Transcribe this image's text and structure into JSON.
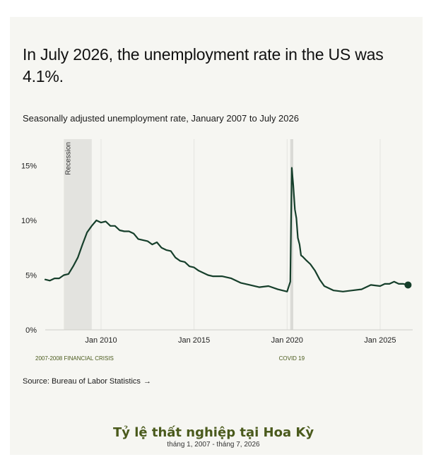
{
  "headline": "In July 2026, the unemployment rate in the US was 4.1%.",
  "subtitle": "Seasonally adjusted unemployment rate, January 2007 to July 2026",
  "source": {
    "label": "Source: Bureau of Labor Statistics",
    "arrow": "→"
  },
  "footer": {
    "title": "Tỷ lệ thất nghiệp tại Hoa Kỳ",
    "subtitle": "tháng 1, 2007 - tháng 7, 2026"
  },
  "colors": {
    "line": "#163f2b",
    "recession": "#e3e3df",
    "covid": "#dadad6",
    "annotation": "#4a5a1c",
    "background": "#f6f6f2"
  },
  "chart_data": {
    "type": "line",
    "xlim": [
      2007.0,
      2026.75
    ],
    "ylim": [
      0,
      16
    ],
    "y_ticks": [
      0,
      5,
      10,
      15
    ],
    "y_tick_labels": [
      "0%",
      "5%",
      "10%",
      "15%"
    ],
    "x_ticks": [
      2010,
      2015,
      2020,
      2025
    ],
    "x_tick_labels": [
      "Jan 2010",
      "Jan 2015",
      "Jan 2020",
      "Jan 2025"
    ],
    "grid": "vertical",
    "shaded_periods": [
      {
        "start": 2008.0,
        "end": 2009.5,
        "label": "Recession",
        "bottom_label": "2007-2008 FINANCIAL CRISIS"
      },
      {
        "start": 2020.17,
        "end": 2020.33,
        "label": "",
        "bottom_label": "COVID 19"
      }
    ],
    "series": [
      {
        "x": [
          2007.0,
          2007.25,
          2007.5,
          2007.75,
          2008.0,
          2008.25,
          2008.5,
          2008.75,
          2009.0,
          2009.25,
          2009.5,
          2009.75,
          2010.0,
          2010.25,
          2010.5,
          2010.75,
          2011.0,
          2011.25,
          2011.5,
          2011.75,
          2012.0,
          2012.25,
          2012.5,
          2012.75,
          2013.0,
          2013.25,
          2013.5,
          2013.75,
          2014.0,
          2014.25,
          2014.5,
          2014.75,
          2015.0,
          2015.25,
          2015.5,
          2015.75,
          2016.0,
          2016.5,
          2017.0,
          2017.5,
          2018.0,
          2018.5,
          2019.0,
          2019.5,
          2019.75,
          2020.0,
          2020.17,
          2020.25,
          2020.33,
          2020.42,
          2020.5,
          2020.58,
          2020.67,
          2020.75,
          2020.83,
          2021.0,
          2021.25,
          2021.5,
          2021.75,
          2022.0,
          2022.5,
          2023.0,
          2023.5,
          2024.0,
          2024.5,
          2025.0,
          2025.25,
          2025.5,
          2025.75,
          2026.0,
          2026.25,
          2026.5
        ],
        "values": [
          4.6,
          4.5,
          4.7,
          4.7,
          5.0,
          5.1,
          5.8,
          6.6,
          7.8,
          8.9,
          9.5,
          10.0,
          9.8,
          9.9,
          9.5,
          9.5,
          9.1,
          9.0,
          9.0,
          8.8,
          8.3,
          8.2,
          8.1,
          7.8,
          8.0,
          7.5,
          7.3,
          7.2,
          6.6,
          6.3,
          6.2,
          5.8,
          5.7,
          5.4,
          5.2,
          5.0,
          4.9,
          4.9,
          4.7,
          4.3,
          4.1,
          3.9,
          4.0,
          3.7,
          3.6,
          3.5,
          4.4,
          14.8,
          13.2,
          11.0,
          10.2,
          8.4,
          7.8,
          6.8,
          6.7,
          6.4,
          6.0,
          5.4,
          4.6,
          4.0,
          3.6,
          3.5,
          3.6,
          3.7,
          4.1,
          4.0,
          4.2,
          4.2,
          4.4,
          4.2,
          4.2,
          4.1
        ]
      }
    ],
    "last_point": {
      "x": 2026.5,
      "y": 4.1
    }
  }
}
